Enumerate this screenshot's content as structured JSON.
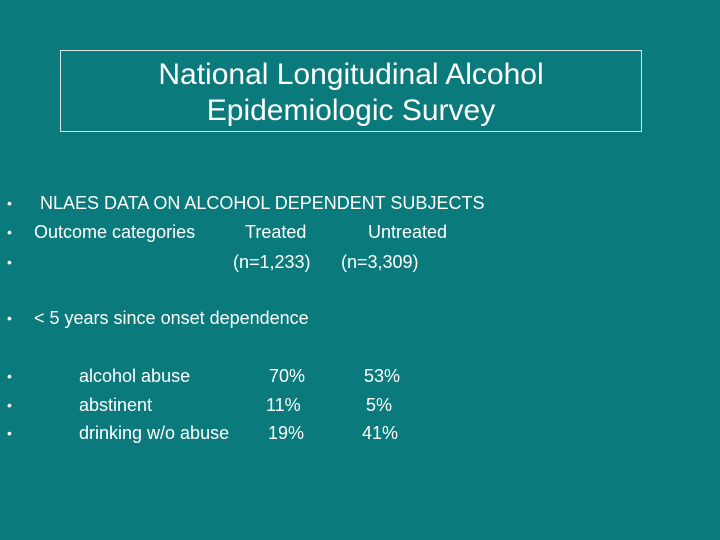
{
  "slide": {
    "title_line1": "National Longitudinal Alcohol",
    "title_line2": "Epidemiologic Survey",
    "bullet_glyph": "•",
    "header": "NLAES DATA ON ALCOHOL DEPENDENT SUBJECTS",
    "columns": {
      "label": "Outcome categories",
      "treated": "Treated",
      "untreated": "Untreated",
      "treated_n": "(n=1,233)",
      "untreated_n": "(n=3,309)"
    },
    "subheader": "< 5 years since onset dependence",
    "rows": [
      {
        "label": "alcohol abuse",
        "treated": "70%",
        "untreated": "53%"
      },
      {
        "label": "abstinent",
        "treated": "11%",
        "untreated": "5%"
      },
      {
        "label": "drinking w/o abuse",
        "treated": "19%",
        "untreated": "41%"
      }
    ]
  }
}
